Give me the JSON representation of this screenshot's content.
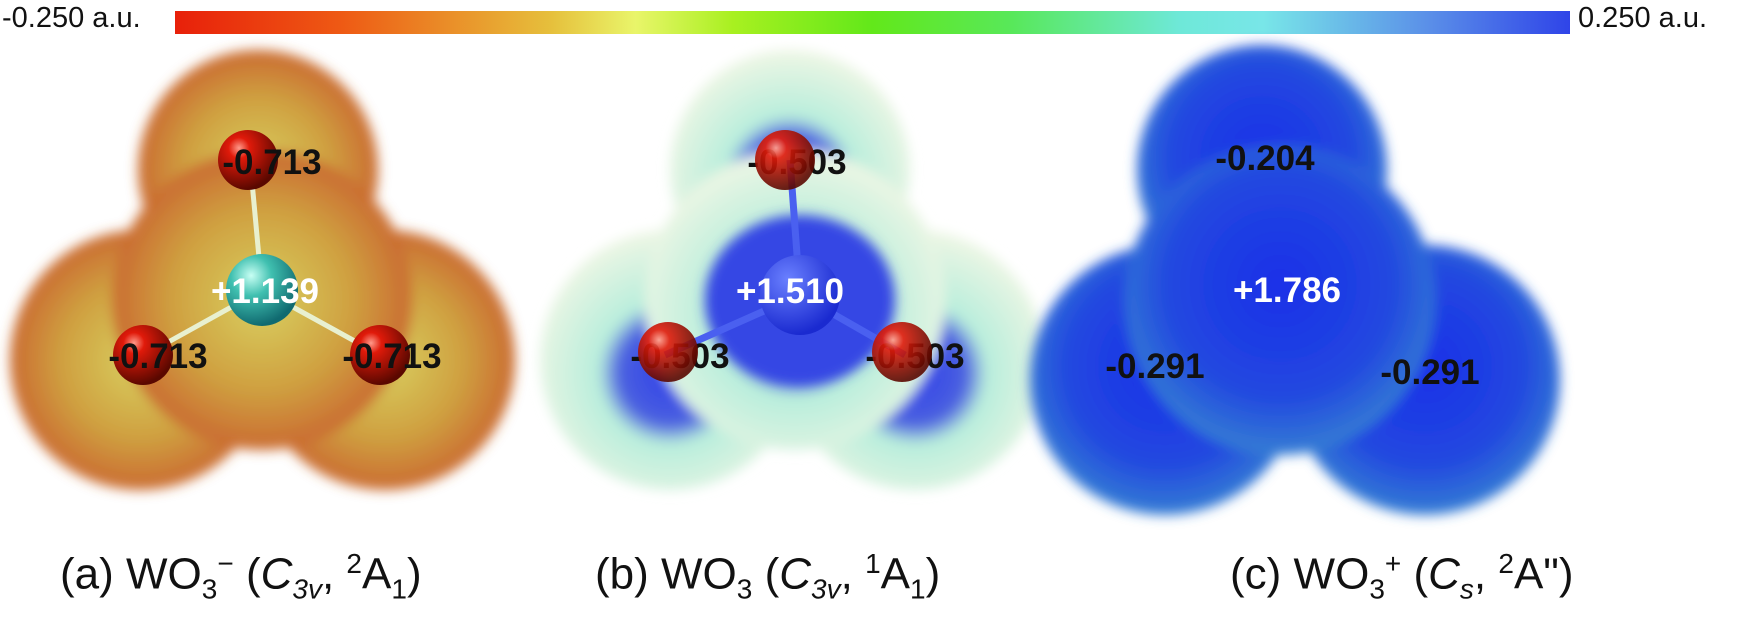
{
  "colorbar": {
    "min_label": "-0.250 a.u.",
    "max_label": "0.250 a.u.",
    "colors": [
      "#e8200a",
      "#e9f56a",
      "#62e81a",
      "#78e6e8",
      "#2f44e8"
    ]
  },
  "panels": [
    {
      "tag": "(a)",
      "species": "WO",
      "sub": "3",
      "charge_sup": "−",
      "group": "C",
      "group_sub": "3v",
      "state_sup": "2",
      "state": "A",
      "state_sub": "1",
      "w_charge": "+1.139",
      "o_charges": [
        "-0.713",
        "-0.713",
        "-0.713"
      ]
    },
    {
      "tag": "(b)",
      "species": "WO",
      "sub": "3",
      "charge_sup": "",
      "group": "C",
      "group_sub": "3v",
      "state_sup": "1",
      "state": "A",
      "state_sub": "1",
      "w_charge": "+1.510",
      "o_charges": [
        "-0.503",
        "-0.503",
        "-0.503"
      ]
    },
    {
      "tag": "(c)",
      "species": "WO",
      "sub": "3",
      "charge_sup": "+",
      "group": "C",
      "group_sub": "s",
      "state_sup": "2",
      "state": "A\"",
      "state_sub": "",
      "w_charge": "+1.786",
      "o_charges": [
        "-0.204",
        "-0.291",
        "-0.291"
      ]
    }
  ]
}
